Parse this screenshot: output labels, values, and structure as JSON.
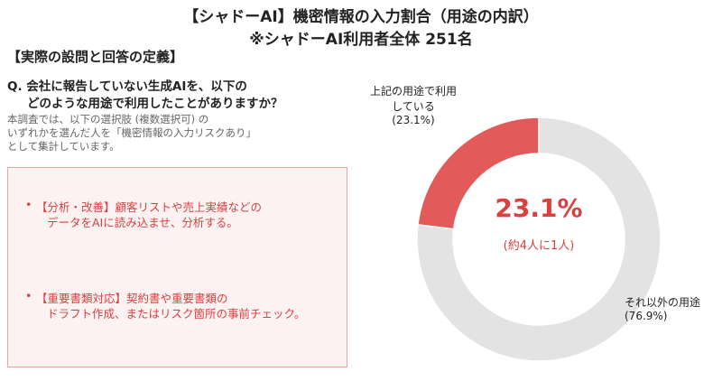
{
  "title": "【シャドーAI】機密情報の入力割合（用途の内訳）",
  "subtitle": "※シャドーAI利用者全体 251名",
  "definition": {
    "heading": "【実際の設問と回答の定義】",
    "question": [
      "Q. 会社に報告していない生成AIを、以下の",
      "どのような用途で利用したことがありますか？"
    ],
    "note": [
      "本調査では、以下の選択肢 (複数選択可) の",
      "いずれかを選んだ人を「機密情報の入力リスクあり」",
      "として集計しています。"
    ],
    "items": [
      [
        "【分析・改善】顧客リストや売上実績などの",
        "データをAIに読み込ませ、分析する。"
      ],
      [
        "【重要書類対応】契約書や重要書類の",
        "ドラフト作成、またはリスク箇所の事前チェック。"
      ]
    ]
  },
  "chart_data": {
    "type": "donut",
    "categories": [
      "上記の用途で利用している",
      "それ以外の用途"
    ],
    "values": [
      23.1,
      76.9
    ],
    "value_labels": [
      "(23.1%)",
      "(76.9%)"
    ],
    "colors": [
      "#e25a5a",
      "#e3e3e3"
    ],
    "center_label": "23.1%",
    "center_sublabel": "(約4人に1人)"
  }
}
